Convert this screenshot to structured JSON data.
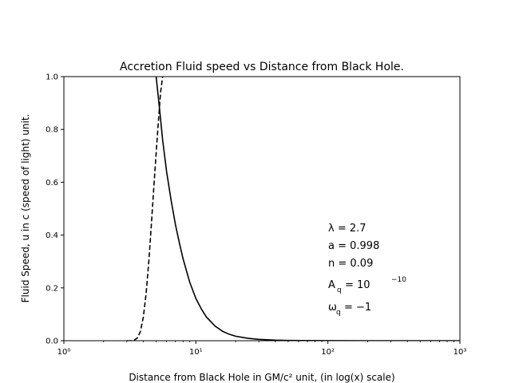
{
  "chart_data": {
    "type": "line",
    "title": "Accretion Fluid speed vs Distance from Black Hole.",
    "xlabel": "Distance from Black Hole in GM/c² unit, (in log(x) scale)",
    "ylabel": "Fluid Speed, u in c (speed of light) unit.",
    "xscale": "log",
    "xlim": [
      1,
      1000
    ],
    "ylim": [
      0,
      1
    ],
    "x_ticks": [
      {
        "value": 1,
        "label": "10⁰"
      },
      {
        "value": 10,
        "label": "10¹"
      },
      {
        "value": 100,
        "label": "10²"
      },
      {
        "value": 1000,
        "label": "10³"
      }
    ],
    "y_ticks": [
      {
        "value": 0.0,
        "label": "0.0"
      },
      {
        "value": 0.2,
        "label": "0.2"
      },
      {
        "value": 0.4,
        "label": "0.4"
      },
      {
        "value": 0.6,
        "label": "0.6"
      },
      {
        "value": 0.8,
        "label": "0.8"
      },
      {
        "value": 1.0,
        "label": "1.0"
      }
    ],
    "grid": false,
    "series": [
      {
        "style": "solid",
        "x": [
          5.0,
          5.3,
          5.6,
          6.0,
          6.5,
          7.0,
          7.5,
          8.0,
          9.0,
          10.0,
          11.0,
          12.0,
          14.0,
          16.0,
          18.0,
          20.0,
          25.0,
          30.0,
          40.0,
          50.0,
          70.0,
          100.0,
          200.0,
          500.0,
          1000.0
        ],
        "y": [
          1.0,
          0.88,
          0.76,
          0.64,
          0.53,
          0.44,
          0.37,
          0.31,
          0.22,
          0.16,
          0.12,
          0.09,
          0.055,
          0.035,
          0.024,
          0.017,
          0.009,
          0.005,
          0.002,
          0.001,
          0.0005,
          0.0002,
          0.0,
          0.0,
          0.0
        ]
      },
      {
        "style": "dashed",
        "x": [
          3.0,
          3.2,
          3.4,
          3.6,
          3.8,
          4.0,
          4.2,
          4.4,
          4.6,
          4.8,
          5.0,
          5.2,
          5.4,
          5.6
        ],
        "y": [
          0.0,
          0.0,
          0.002,
          0.01,
          0.035,
          0.09,
          0.18,
          0.3,
          0.44,
          0.58,
          0.71,
          0.83,
          0.94,
          1.0
        ]
      }
    ],
    "annotations": [
      "λ = 2.7",
      "a = 0.998",
      "n = 0.09",
      "A",
      "q",
      "= 10",
      "−10",
      "ω",
      "q",
      "= −1"
    ]
  }
}
